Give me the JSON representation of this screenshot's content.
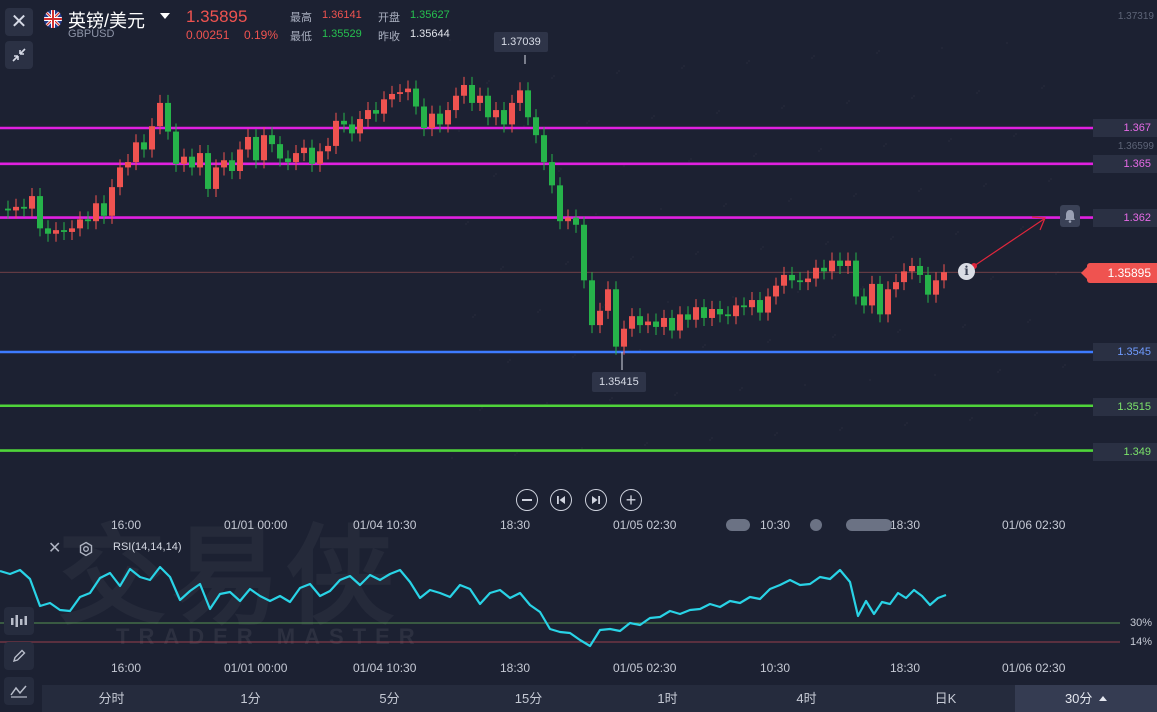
{
  "header": {
    "pair_name": "英镑/美元",
    "symbol": "GBPUSD",
    "price": "1.35895",
    "change": "0.00251",
    "change_pct": "0.19%",
    "high_label": "最高",
    "high_value": "1.36141",
    "open_label": "开盘",
    "open_value": "1.35627",
    "low_label": "最低",
    "low_value": "1.35529",
    "prev_close_label": "昨收",
    "prev_close_value": "1.35644"
  },
  "price_axis": {
    "top_value": "1.37319",
    "mid_value": "1.36599",
    "current_price": "1.35895",
    "levels": [
      {
        "label": "1.367",
        "color": "#e020e0",
        "price": 1.367
      },
      {
        "label": "1.365",
        "color": "#e020e0",
        "price": 1.365
      },
      {
        "label": "1.362",
        "color": "#e020e0",
        "price": 1.362
      },
      {
        "label": "1.3545",
        "color": "#3d7bff",
        "price": 1.3545
      },
      {
        "label": "1.3515",
        "color": "#4fd43a",
        "price": 1.3515
      },
      {
        "label": "1.349",
        "color": "#4fd43a",
        "price": 1.349
      }
    ]
  },
  "callouts": {
    "high": "1.37039",
    "low": "1.35415"
  },
  "time_axis": [
    "16:00",
    "01/01 00:00",
    "01/04 10:30",
    "18:30",
    "01/05 02:30",
    "10:30",
    "18:30",
    "01/06 02:30"
  ],
  "rsi": {
    "label": "RSI(14,14,14)",
    "level_upper": "30%",
    "level_lower": "14%"
  },
  "watermark": {
    "main": "交易侠",
    "sub": "TRADER MASTER"
  },
  "tabs": [
    {
      "label": "分时",
      "active": false
    },
    {
      "label": "1分",
      "active": false
    },
    {
      "label": "5分",
      "active": false
    },
    {
      "label": "15分",
      "active": false
    },
    {
      "label": "1时",
      "active": false
    },
    {
      "label": "4时",
      "active": false
    },
    {
      "label": "日K",
      "active": false
    },
    {
      "label": "30分",
      "active": true
    }
  ],
  "colors": {
    "up": "#ef5350",
    "down": "#26b34a",
    "rsi_line": "#29d3e6",
    "background": "#1c2132"
  },
  "icons": {
    "close": "close-icon",
    "collapse": "collapse-arrows-icon",
    "flag": "uk-flag-icon",
    "info": "info-icon",
    "alert": "bell-icon",
    "rsi_close": "close-icon",
    "rsi_settings": "gear-icon",
    "draw": "pencil-icon",
    "indicator": "indicator-icon",
    "analysis": "chart-analysis-icon"
  }
}
